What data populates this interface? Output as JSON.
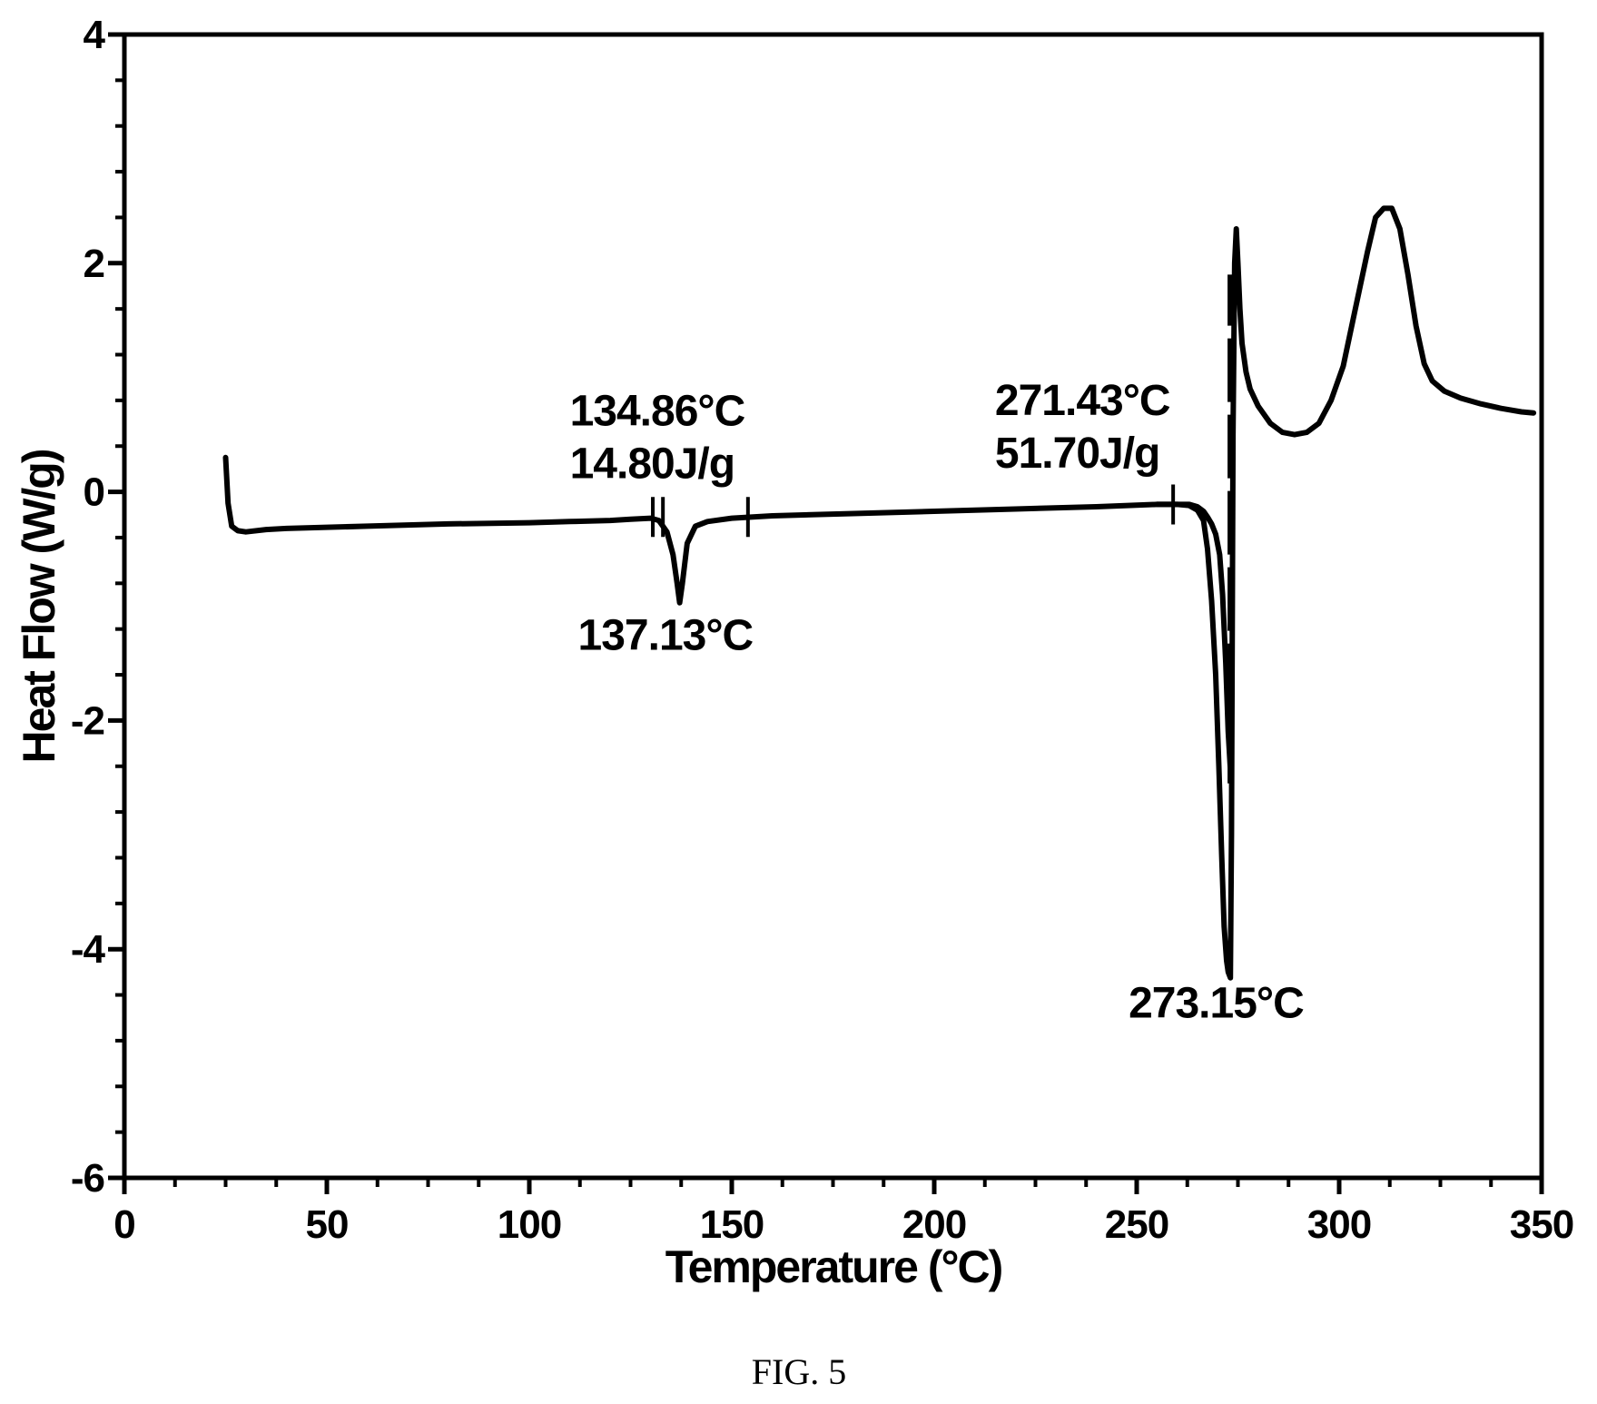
{
  "chart_data": {
    "type": "line",
    "title": "",
    "xlabel": "Temperature (°C)",
    "ylabel": "Heat Flow (W/g)",
    "xlim": [
      0,
      350
    ],
    "ylim": [
      -6,
      4
    ],
    "xticks": [
      0,
      50,
      100,
      150,
      200,
      250,
      300,
      350
    ],
    "yticks": [
      -6,
      -4,
      -2,
      0,
      2,
      4
    ],
    "xtick_labels": [
      "0",
      "50",
      "100",
      "150",
      "200",
      "250",
      "300",
      "350"
    ],
    "ytick_labels": [
      "-6",
      "-4",
      "-2",
      "0",
      "2",
      "4"
    ],
    "grid": false,
    "series": [
      {
        "x": [
          25,
          25.6,
          26.5,
          28,
          30,
          35,
          40,
          60,
          80,
          100,
          110,
          120,
          125,
          130,
          132,
          134,
          135.5,
          136.5,
          137.13,
          137.8,
          139,
          141,
          144,
          150,
          160,
          180,
          200,
          220,
          240,
          255,
          260,
          263,
          265,
          266.5,
          267.5,
          268.5,
          269.5,
          270.3,
          271,
          271.6,
          272.2,
          272.6,
          273.15,
          273.4,
          273.8,
          274.2,
          274.6,
          275,
          275.5,
          276,
          277,
          278,
          280,
          283,
          286,
          289,
          292,
          295,
          298,
          301,
          304,
          307,
          309,
          311,
          313,
          315,
          317,
          319,
          321,
          323,
          326,
          330,
          335,
          340,
          345,
          348
        ],
        "y": [
          0.3,
          -0.1,
          -0.3,
          -0.34,
          -0.35,
          -0.33,
          -0.32,
          -0.3,
          -0.28,
          -0.27,
          -0.26,
          -0.25,
          -0.24,
          -0.23,
          -0.25,
          -0.35,
          -0.55,
          -0.8,
          -0.97,
          -0.8,
          -0.45,
          -0.3,
          -0.26,
          -0.23,
          -0.21,
          -0.19,
          -0.17,
          -0.15,
          -0.13,
          -0.11,
          -0.11,
          -0.12,
          -0.16,
          -0.25,
          -0.5,
          -0.95,
          -1.6,
          -2.4,
          -3.2,
          -3.8,
          -4.1,
          -4.2,
          -4.25,
          -3.0,
          0.5,
          2.0,
          2.3,
          2.0,
          1.6,
          1.3,
          1.05,
          0.9,
          0.75,
          0.6,
          0.52,
          0.5,
          0.52,
          0.6,
          0.8,
          1.1,
          1.6,
          2.1,
          2.4,
          2.48,
          2.48,
          2.3,
          1.9,
          1.45,
          1.12,
          0.97,
          0.88,
          0.82,
          0.77,
          0.73,
          0.7,
          0.69
        ]
      },
      {
        "x": [
          255,
          260,
          263,
          265,
          266.5,
          267.5,
          268.5,
          269.5,
          270.5,
          271.2,
          272,
          272.6,
          273.1
        ],
        "y": [
          -0.11,
          -0.11,
          -0.11,
          -0.13,
          -0.17,
          -0.22,
          -0.28,
          -0.37,
          -0.55,
          -0.9,
          -1.5,
          -2.1,
          -2.4
        ]
      }
    ],
    "integration_markers": [
      {
        "x": 130.5,
        "y": -0.22
      },
      {
        "x": 133,
        "y": -0.22
      },
      {
        "x": 154,
        "y": -0.22
      },
      {
        "x": 259,
        "y": -0.11
      }
    ],
    "vertical_line": {
      "x": 273,
      "y_from": -2.55,
      "y_to": 1.9,
      "style": "dashed"
    },
    "annotations": [
      {
        "lines": [
          "134.86°C",
          "14.80J/g"
        ],
        "x": 110,
        "y": 0.58
      },
      {
        "lines": [
          "137.13°C"
        ],
        "x": 112,
        "y": -1.38
      },
      {
        "lines": [
          "271.43°C",
          "51.70J/g"
        ],
        "x": 215,
        "y": 0.67
      },
      {
        "lines": [
          "273.15°C"
        ],
        "x": 248,
        "y": -4.6
      }
    ]
  },
  "caption": "FIG. 5"
}
